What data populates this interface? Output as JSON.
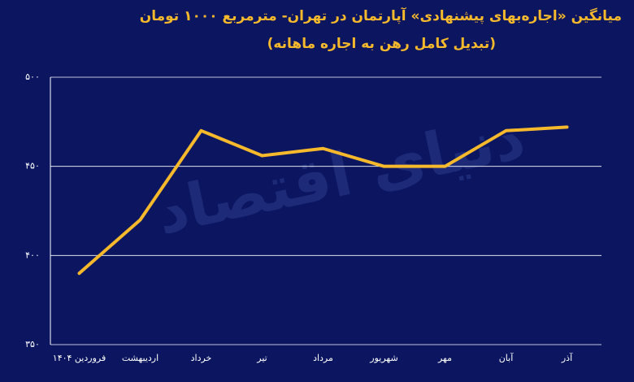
{
  "chart_data": {
    "type": "line",
    "title": "میانگین «اجاره‌بهای پیشنهادی» آپارتمان در تهران- مترمربع ۱۰۰۰ تومان",
    "subtitle": "(تبدیل کامل رهن به اجاره ماهانه)",
    "watermark": "دنیای اقتصاد",
    "categories": [
      "فروردین ۱۴۰۴",
      "اردیبهشت",
      "خرداد",
      "تیر",
      "مرداد",
      "شهریور",
      "مهر",
      "آبان",
      "آذر"
    ],
    "values": [
      390,
      420,
      470,
      456,
      460,
      450,
      450,
      470,
      472
    ],
    "color": "#f6b92c",
    "ylim": [
      350,
      500
    ],
    "yticks": [
      {
        "value": 350,
        "label": "۳۵۰"
      },
      {
        "value": 400,
        "label": "۴۰۰"
      },
      {
        "value": 450,
        "label": "۴۵۰"
      },
      {
        "value": 500,
        "label": "۵۰۰"
      }
    ],
    "grid": true
  }
}
